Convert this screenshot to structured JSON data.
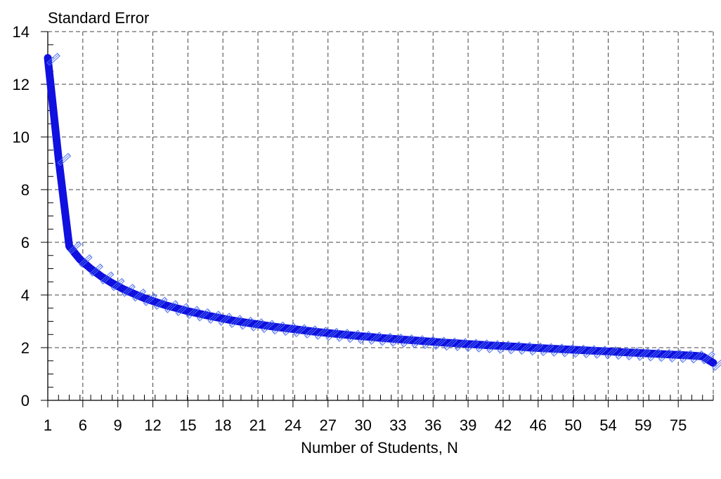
{
  "chart_data": {
    "type": "line",
    "title": "",
    "ylabel": "Standard Error",
    "xlabel": "Number of Students, N",
    "ylim": [
      0,
      14
    ],
    "y_ticks": [
      0,
      2,
      4,
      6,
      8,
      10,
      12,
      14
    ],
    "x_tick_labels": [
      "1",
      "6",
      "9",
      "12",
      "15",
      "18",
      "21",
      "24",
      "27",
      "30",
      "33",
      "36",
      "39",
      "42",
      "46",
      "50",
      "54",
      "59",
      "75"
    ],
    "grid": true,
    "legend": "none",
    "series_color": "#1010e0",
    "marker_color": "#4a6cf0",
    "series": [
      {
        "values": [
          13.0,
          9.2,
          5.85,
          5.35,
          5.0,
          4.7,
          4.45,
          4.23,
          4.05,
          3.88,
          3.74,
          3.61,
          3.5,
          3.39,
          3.3,
          3.21,
          3.13,
          3.05,
          2.98,
          2.92,
          2.86,
          2.8,
          2.75,
          2.7,
          2.65,
          2.6,
          2.56,
          2.52,
          2.48,
          2.44,
          2.41,
          2.37,
          2.34,
          2.31,
          2.28,
          2.25,
          2.22,
          2.19,
          2.17,
          2.14,
          2.12,
          2.09,
          2.07,
          2.05,
          2.03,
          2.0,
          1.98,
          1.96,
          1.94,
          1.92,
          1.9,
          1.88,
          1.86,
          1.84,
          1.82,
          1.8,
          1.78,
          1.76,
          1.74,
          1.72,
          1.7,
          1.67,
          1.42
        ]
      }
    ]
  }
}
